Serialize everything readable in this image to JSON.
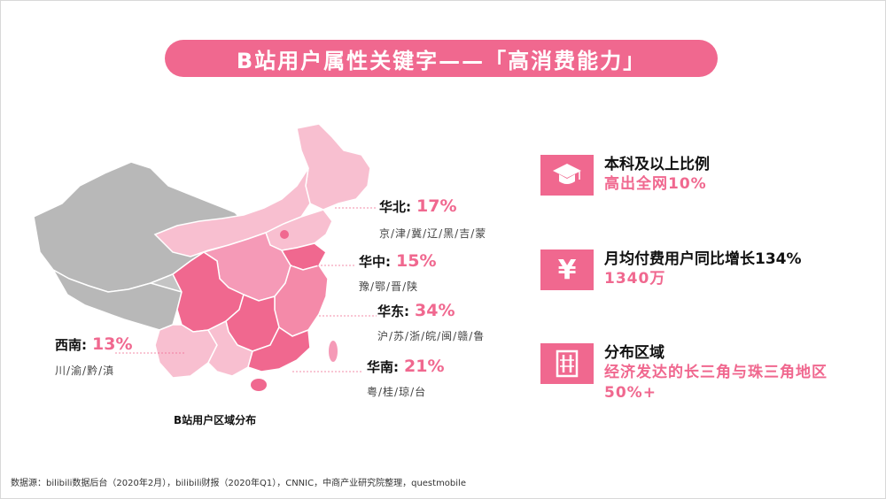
{
  "title": "B站用户属性关键字——「高消费能力」",
  "map": {
    "caption": "B站用户区域分布",
    "regions": [
      {
        "name": "华北:",
        "pct": "17%",
        "provinces": "京/津/冀/辽/黑/吉/蒙"
      },
      {
        "name": "华中:",
        "pct": "15%",
        "provinces": "豫/鄂/晋/陕"
      },
      {
        "name": "华东:",
        "pct": "34%",
        "provinces": "沪/苏/浙/皖/闽/赣/鲁"
      },
      {
        "name": "华南:",
        "pct": "21%",
        "provinces": "粤/桂/琼/台"
      },
      {
        "name": "西南:",
        "pct": "13%",
        "provinces": "川/渝/黔/滇"
      }
    ]
  },
  "stats": [
    {
      "icon": "graduation-cap-icon",
      "head": "本科及以上比例",
      "sub": "高出全网10%"
    },
    {
      "icon": "yen-icon",
      "head": "月均付费用户同比增长134%",
      "sub": "1340万"
    },
    {
      "icon": "building-icon",
      "head": "分布区域",
      "sub": "经济发达的长三角与珠三角地区50%+"
    }
  ],
  "source": "数据源：bilibili数据后台（2020年2月），bilibili财报（2020年Q1），CNNIC，中商产业研究院整理，questmobile",
  "colors": {
    "accent": "#f0688f",
    "map_gray": "#b8b8b8",
    "map_light": "#f8bfd0",
    "map_mid": "#f59ab7",
    "map_dark": "#f0688f"
  }
}
